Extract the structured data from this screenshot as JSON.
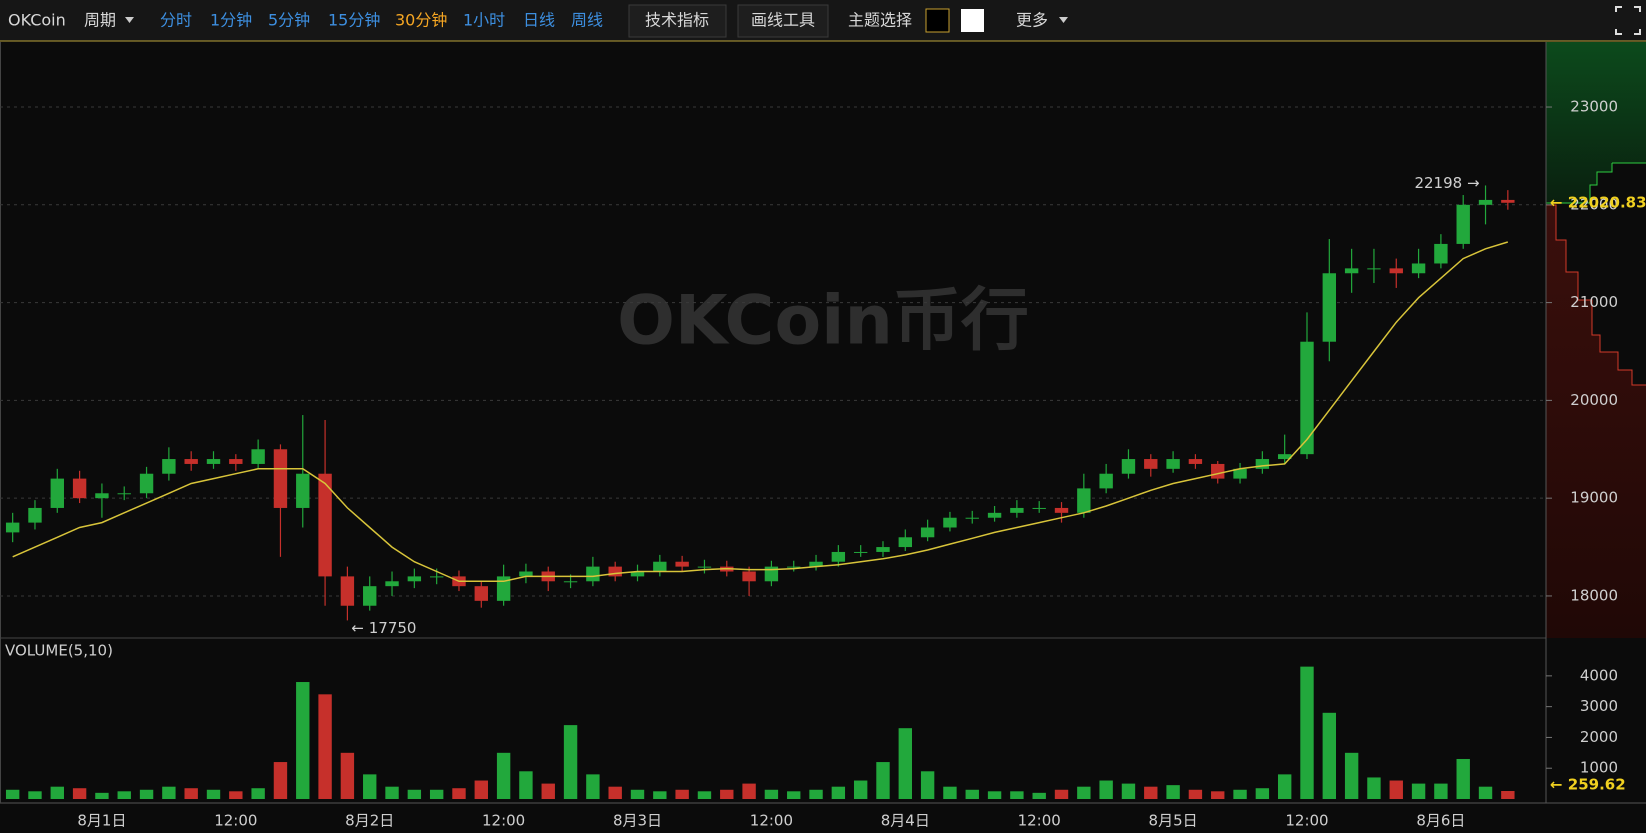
{
  "toolbar": {
    "logo": "OKCoin",
    "period": "周期",
    "intervals": [
      {
        "label": "分时",
        "color": "#3d8fe0"
      },
      {
        "label": "1分钟",
        "color": "#3d8fe0"
      },
      {
        "label": "5分钟",
        "color": "#3d8fe0"
      },
      {
        "label": "15分钟",
        "color": "#3d8fe0"
      },
      {
        "label": "30分钟",
        "color": "#f5a623"
      },
      {
        "label": "1小时",
        "color": "#3d8fe0"
      },
      {
        "label": "日线",
        "color": "#3d8fe0"
      },
      {
        "label": "周线",
        "color": "#3d8fe0"
      }
    ],
    "buttons": [
      "技术指标",
      "画线工具"
    ],
    "theme": "主题选择",
    "more": "更多"
  },
  "watermark": "OKCoin币行",
  "chart_data": {
    "type": "candlestick",
    "categories": [
      null,
      null,
      null,
      null,
      "8月1日",
      null,
      null,
      null,
      null,
      null,
      "12:00",
      null,
      null,
      null,
      null,
      null,
      "8月2日",
      null,
      null,
      null,
      null,
      null,
      "12:00",
      null,
      null,
      null,
      null,
      null,
      "8月3日",
      null,
      null,
      null,
      null,
      null,
      "12:00",
      null,
      null,
      null,
      null,
      null,
      "8月4日",
      null,
      null,
      null,
      null,
      null,
      "12:00",
      null,
      null,
      null,
      null,
      null,
      "8月5日",
      null,
      null,
      null,
      null,
      null,
      "12:00",
      null,
      null,
      null,
      null,
      null,
      "8月6日",
      null,
      null,
      null
    ],
    "open": [
      18650,
      18750,
      18900,
      19200,
      19000,
      19050,
      19050,
      19250,
      19400,
      19350,
      19400,
      19350,
      19500,
      18900,
      19250,
      18200,
      17900,
      18100,
      18150,
      18200,
      18200,
      18100,
      17950,
      18200,
      18250,
      18150,
      18150,
      18300,
      18200,
      18250,
      18350,
      18300,
      18300,
      18250,
      18150,
      18300,
      18300,
      18350,
      18450,
      18450,
      18500,
      18600,
      18700,
      18800,
      18800,
      18850,
      18900,
      18900,
      18850,
      19100,
      19250,
      19400,
      19300,
      19400,
      19350,
      19200,
      19300,
      19400,
      19450,
      20600,
      21300,
      21350,
      21350,
      21300,
      21400,
      21600,
      22000,
      22050
    ],
    "high": [
      18850,
      18980,
      19300,
      19280,
      19150,
      19120,
      19320,
      19520,
      19480,
      19480,
      19450,
      19600,
      19550,
      19850,
      19800,
      18300,
      18200,
      18250,
      18280,
      18280,
      18260,
      18150,
      18320,
      18330,
      18300,
      18220,
      18400,
      18350,
      18320,
      18420,
      18410,
      18370,
      18360,
      18300,
      18360,
      18360,
      18420,
      18520,
      18520,
      18560,
      18680,
      18780,
      18860,
      18870,
      18920,
      18980,
      18970,
      18960,
      19250,
      19350,
      19500,
      19450,
      19480,
      19450,
      19380,
      19360,
      19480,
      19650,
      20900,
      21650,
      21550,
      21550,
      21450,
      21550,
      21700,
      22100,
      22198,
      22150
    ],
    "low": [
      18550,
      18680,
      18850,
      18950,
      18800,
      18980,
      19000,
      19180,
      19280,
      19300,
      19280,
      19300,
      18400,
      18700,
      17900,
      17750,
      17850,
      18000,
      18080,
      18120,
      18050,
      17880,
      17900,
      18130,
      18050,
      18080,
      18100,
      18150,
      18150,
      18200,
      18250,
      18230,
      18200,
      18000,
      18100,
      18250,
      18260,
      18300,
      18400,
      18400,
      18460,
      18560,
      18660,
      18740,
      18760,
      18800,
      18850,
      18750,
      18800,
      19050,
      19200,
      19220,
      19260,
      19300,
      19150,
      19150,
      19250,
      19350,
      19400,
      20400,
      21100,
      21200,
      21150,
      21250,
      21350,
      21550,
      21800,
      21950
    ],
    "close": [
      18750,
      18900,
      19200,
      19000,
      19050,
      19050,
      19250,
      19400,
      19350,
      19400,
      19350,
      19500,
      18900,
      19250,
      18200,
      17900,
      18100,
      18150,
      18200,
      18200,
      18100,
      17950,
      18200,
      18250,
      18150,
      18150,
      18300,
      18200,
      18250,
      18350,
      18300,
      18300,
      18250,
      18150,
      18300,
      18300,
      18350,
      18450,
      18450,
      18500,
      18600,
      18700,
      18800,
      18800,
      18850,
      18900,
      18900,
      18850,
      19100,
      19250,
      19400,
      19300,
      19400,
      19350,
      19200,
      19300,
      19400,
      19450,
      20600,
      21300,
      21350,
      21350,
      21300,
      21400,
      21600,
      22000,
      22050,
      22020.83
    ],
    "up_color": "#22a83c",
    "down_color": "#c6302b",
    "ylim": [
      17570,
      23665
    ],
    "yticks": [
      18000,
      19000,
      20000,
      21000,
      22000,
      23000
    ],
    "grid": true,
    "ma_lines": [
      {
        "color": "#d8c43a",
        "values": [
          18400,
          18500,
          18600,
          18700,
          18750,
          18850,
          18950,
          19050,
          19150,
          19200,
          19250,
          19300,
          19300,
          19300,
          19150,
          18900,
          18700,
          18500,
          18350,
          18250,
          18150,
          18150,
          18150,
          18200,
          18200,
          18200,
          18200,
          18230,
          18250,
          18250,
          18250,
          18270,
          18280,
          18270,
          18270,
          18280,
          18300,
          18320,
          18350,
          18380,
          18420,
          18470,
          18530,
          18590,
          18650,
          18700,
          18750,
          18800,
          18850,
          18920,
          19000,
          19080,
          19150,
          19200,
          19250,
          19300,
          19330,
          19350,
          19600,
          19900,
          20200,
          20500,
          20800,
          21050,
          21250,
          21450,
          21550,
          21620
        ]
      }
    ],
    "annotations": [
      {
        "value": 22198,
        "label": "22198 →"
      },
      {
        "value": 17750,
        "label": "← 17750"
      }
    ],
    "last_price": {
      "value": 22020.83,
      "label": "← 22020.83",
      "color": "#f0d020"
    },
    "volume": {
      "title": "VOLUME(5,10)",
      "values": [
        300,
        250,
        400,
        350,
        200,
        250,
        300,
        400,
        350,
        300,
        250,
        350,
        1200,
        3800,
        3400,
        1500,
        800,
        400,
        300,
        300,
        350,
        600,
        1500,
        900,
        500,
        2400,
        800,
        400,
        300,
        250,
        300,
        250,
        300,
        500,
        300,
        250,
        300,
        400,
        600,
        1200,
        2300,
        900,
        400,
        300,
        250,
        250,
        200,
        300,
        400,
        600,
        500,
        400,
        450,
        300,
        250,
        300,
        350,
        800,
        4300,
        2800,
        1500,
        700,
        600,
        500,
        500,
        1300,
        400,
        259.62
      ],
      "ylim": [
        -130,
        5230
      ],
      "yticks": [
        1000,
        2000,
        3000,
        4000
      ],
      "last": {
        "value": 259.62,
        "label": "← 259.62",
        "color": "#f0d020"
      }
    }
  }
}
